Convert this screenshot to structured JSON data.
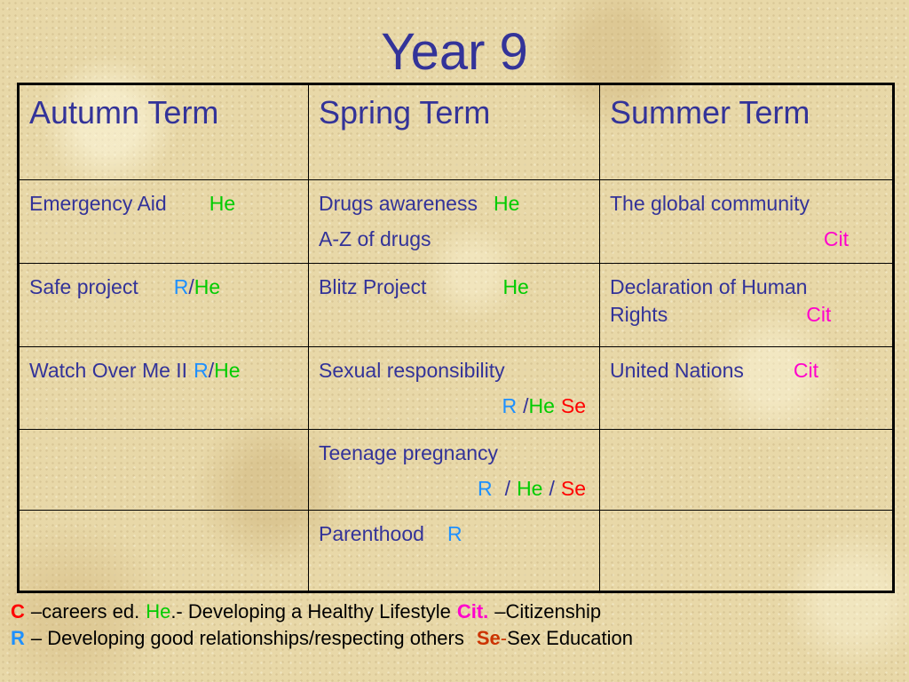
{
  "title": "Year 9",
  "headers": [
    "Autumn Term",
    "Spring Term",
    "Summer Term"
  ],
  "rows": [
    {
      "autumn": {
        "text": "Emergency Aid",
        "tag1": "He"
      },
      "spring": {
        "text": "Drugs awareness",
        "tag1": "He",
        "line2": "A-Z of drugs"
      },
      "summer": {
        "text": "The global community",
        "tag1": "Cit"
      }
    },
    {
      "autumn": {
        "text": "Safe project",
        "tag1": "R",
        "sep": "/",
        "tag2": "He"
      },
      "spring": {
        "text": "Blitz Project",
        "tag1": "He"
      },
      "summer": {
        "text": "Declaration of Human",
        "line2": "Rights",
        "tag1": "Cit"
      }
    },
    {
      "autumn": {
        "text": "Watch Over Me II",
        "tag1": "R",
        "sep": "/",
        "tag2": "He"
      },
      "spring": {
        "text": "Sexual responsibility",
        "tag1": "R",
        "sep": "/",
        "tag2": "He",
        "tag3": "Se"
      },
      "summer": {
        "text": "United Nations",
        "tag1": "Cit"
      }
    },
    {
      "autumn": {},
      "spring": {
        "text": "Teenage pregnancy",
        "tag1": "R",
        "sep1": "/",
        "tag2": "He",
        "sep2": "/",
        "tag3": "Se"
      },
      "summer": {}
    },
    {
      "autumn": {},
      "spring": {
        "text": "Parenthood",
        "tag1": "R"
      },
      "summer": {}
    }
  ],
  "legend": {
    "c_key": "C",
    "c_desc": "–careers ed.",
    "he_key": "He",
    "he_desc": ".- Developing a Healthy Lifestyle",
    "cit_key": "Cit.",
    "cit_desc": "–Citizenship",
    "r_key": "R",
    "r_desc": "– Developing good relationships/respecting others",
    "se_key": "Se",
    "se_dash": "-",
    "se_desc": "Sex Education"
  },
  "colors": {
    "title": "#333399",
    "body_text": "#333399",
    "he": "#00cc00",
    "r": "#1e90ff",
    "cit": "#ff00cc",
    "se": "#ff0000",
    "background": "#e8d8a8"
  }
}
